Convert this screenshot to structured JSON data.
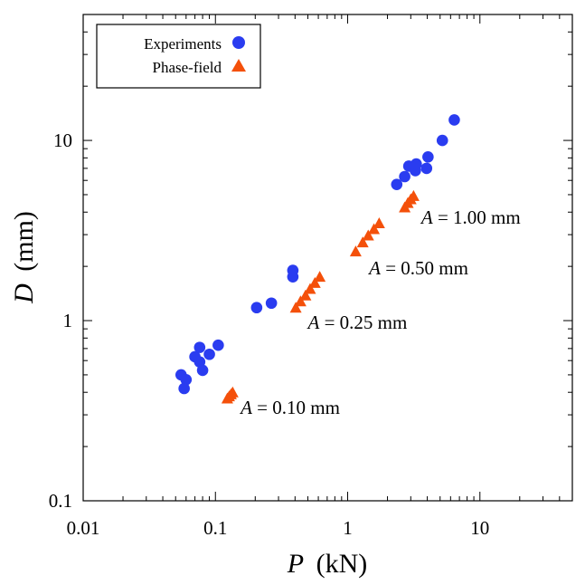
{
  "chart_data": {
    "type": "scatter",
    "title": "",
    "xscale": "log",
    "yscale": "log",
    "xlim": [
      0.01,
      50
    ],
    "ylim": [
      0.1,
      50
    ],
    "xlabel": {
      "var": "P",
      "unit": "(kN)"
    },
    "ylabel": {
      "var": "D",
      "unit": "(mm)"
    },
    "x_ticks": [
      {
        "value": 0.01,
        "label": "0.01"
      },
      {
        "value": 0.1,
        "label": "0.1"
      },
      {
        "value": 1,
        "label": "1"
      },
      {
        "value": 10,
        "label": "10"
      }
    ],
    "y_ticks": [
      {
        "value": 0.1,
        "label": "0.1"
      },
      {
        "value": 1,
        "label": "1"
      },
      {
        "value": 10,
        "label": "10"
      }
    ],
    "legend_position": "top-left",
    "series": [
      {
        "name": "Experiments",
        "marker": "circle",
        "color": "#2a3cf0",
        "points": [
          {
            "x": 0.055,
            "y": 0.5
          },
          {
            "x": 0.06,
            "y": 0.47
          },
          {
            "x": 0.058,
            "y": 0.42
          },
          {
            "x": 0.07,
            "y": 0.63
          },
          {
            "x": 0.076,
            "y": 0.71
          },
          {
            "x": 0.076,
            "y": 0.59
          },
          {
            "x": 0.08,
            "y": 0.53
          },
          {
            "x": 0.09,
            "y": 0.65
          },
          {
            "x": 0.105,
            "y": 0.73
          },
          {
            "x": 0.205,
            "y": 1.18
          },
          {
            "x": 0.265,
            "y": 1.25
          },
          {
            "x": 0.385,
            "y": 1.75
          },
          {
            "x": 0.385,
            "y": 1.9
          },
          {
            "x": 2.35,
            "y": 5.7
          },
          {
            "x": 2.7,
            "y": 6.3
          },
          {
            "x": 2.9,
            "y": 7.2
          },
          {
            "x": 3.25,
            "y": 6.8
          },
          {
            "x": 3.3,
            "y": 7.4
          },
          {
            "x": 3.95,
            "y": 7.0
          },
          {
            "x": 4.05,
            "y": 8.1
          },
          {
            "x": 5.2,
            "y": 10.0
          },
          {
            "x": 6.4,
            "y": 13.0
          }
        ]
      },
      {
        "name": "Phase-field",
        "marker": "triangle",
        "color": "#f4500a",
        "points": [
          {
            "x": 0.123,
            "y": 0.37
          },
          {
            "x": 0.127,
            "y": 0.38
          },
          {
            "x": 0.131,
            "y": 0.39
          },
          {
            "x": 0.135,
            "y": 0.4
          },
          {
            "x": 0.405,
            "y": 1.18
          },
          {
            "x": 0.44,
            "y": 1.28
          },
          {
            "x": 0.48,
            "y": 1.38
          },
          {
            "x": 0.52,
            "y": 1.5
          },
          {
            "x": 0.565,
            "y": 1.62
          },
          {
            "x": 0.615,
            "y": 1.75
          },
          {
            "x": 1.15,
            "y": 2.42
          },
          {
            "x": 1.3,
            "y": 2.72
          },
          {
            "x": 1.43,
            "y": 2.97
          },
          {
            "x": 1.58,
            "y": 3.22
          },
          {
            "x": 1.73,
            "y": 3.47
          },
          {
            "x": 2.7,
            "y": 4.25
          },
          {
            "x": 2.85,
            "y": 4.5
          },
          {
            "x": 3.0,
            "y": 4.72
          },
          {
            "x": 3.15,
            "y": 4.92
          }
        ]
      }
    ],
    "annotations": [
      {
        "var": "A",
        "text": " = 0.10 mm",
        "x": 0.155,
        "y": 0.37
      },
      {
        "var": "A",
        "text": " = 0.25 mm",
        "x": 0.5,
        "y": 1.1
      },
      {
        "var": "A",
        "text": " = 0.50 mm",
        "x": 1.45,
        "y": 2.2
      },
      {
        "var": "A",
        "text": " = 1.00 mm",
        "x": 3.6,
        "y": 4.2
      }
    ]
  }
}
